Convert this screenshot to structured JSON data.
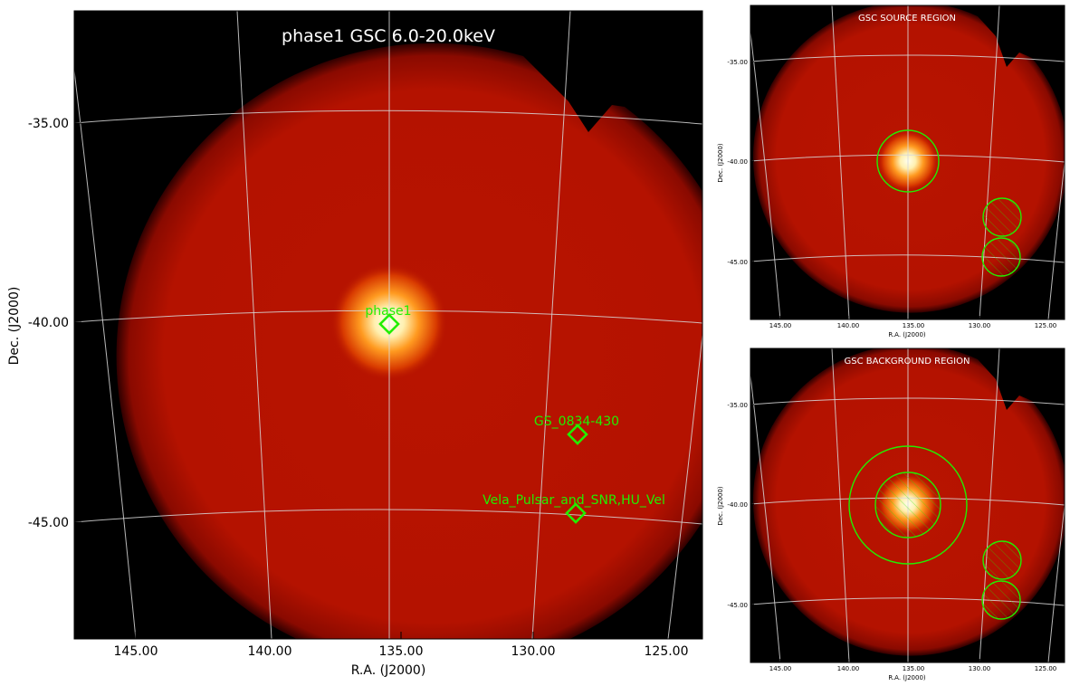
{
  "main": {
    "title": "phase1 GSC 6.0-20.0keV",
    "xlabel": "R.A. (J2000)",
    "ylabel": "Dec. (J2000)",
    "x_ticks": [
      "145.00",
      "140.00",
      "135.00",
      "130.00",
      "125.00"
    ],
    "y_ticks": [
      "-35.00",
      "-40.00",
      "-45.00"
    ],
    "markers": [
      {
        "label": "phase1"
      },
      {
        "label": "GS_0834-430"
      },
      {
        "label": "Vela_Pulsar_and_SNR,HU_Vel"
      }
    ]
  },
  "source_panel": {
    "title": "GSC SOURCE REGION",
    "xlabel": "R.A. (J2000)",
    "ylabel": "Dec. (J2000)",
    "x_ticks": [
      "145.00",
      "140.00",
      "135.00",
      "130.00",
      "125.00"
    ],
    "y_ticks": [
      "-35.00",
      "-40.00",
      "-45.00"
    ]
  },
  "background_panel": {
    "title": "GSC BACKGROUND REGION",
    "xlabel": "R.A. (J2000)",
    "ylabel": "Dec. (J2000)",
    "x_ticks": [
      "145.00",
      "140.00",
      "135.00",
      "130.00",
      "125.00"
    ],
    "y_ticks": [
      "-35.00",
      "-40.00",
      "-45.00"
    ]
  },
  "colors": {
    "marker": "#22ee00",
    "background": "#000000",
    "field": "#b41200",
    "grid": "#d8d8d8"
  }
}
